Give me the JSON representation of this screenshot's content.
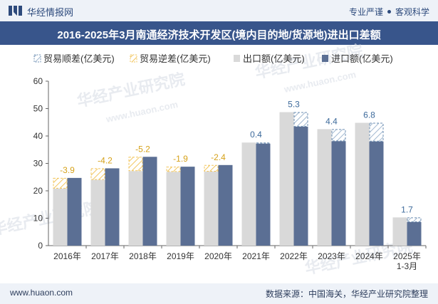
{
  "header": {
    "brand": "华经情报网",
    "slogan_left": "专业严谨",
    "slogan_right": "客观科学"
  },
  "watermark": [
    "华经产业研究院",
    "www.huaon.com"
  ],
  "footer": {
    "url": "www.huaon.com",
    "source": "数据来源：中国海关，华经产业研究院整理"
  },
  "colors": {
    "export": "#d9d9d9",
    "import": "#5b6f94",
    "surplus_border": "#6e8fb3",
    "deficit_border": "#f2c55c",
    "title_bg": "#38558b",
    "bar_bg": "#eef2f8"
  },
  "chart_data": {
    "type": "bar",
    "title": "2016-2025年3月南通经济技术开发区(境内目的地/货源地)进出口差额",
    "categories": [
      "2016年",
      "2017年",
      "2018年",
      "2019年",
      "2020年",
      "2021年",
      "2022年",
      "2023年",
      "2024年",
      "2025年\n1-3月"
    ],
    "series": [
      {
        "name": "出口额(亿美元)",
        "values": [
          20.8,
          24.0,
          27.2,
          26.9,
          27.0,
          37.6,
          48.7,
          42.5,
          44.8,
          10.3
        ]
      },
      {
        "name": "进口额(亿美元)",
        "values": [
          24.7,
          28.2,
          32.4,
          28.8,
          29.4,
          37.2,
          43.4,
          38.1,
          38.0,
          8.6
        ]
      }
    ],
    "balance": {
      "labels": [
        "-3.9",
        "-4.2",
        "-5.2",
        "-1.9",
        "-2.4",
        "0.4",
        "5.3",
        "4.4",
        "6.8",
        "1.7"
      ],
      "values": [
        -3.9,
        -4.2,
        -5.2,
        -1.9,
        -2.4,
        0.4,
        5.3,
        4.4,
        6.8,
        1.7
      ]
    },
    "legend": [
      {
        "name": "贸易顺差(亿美元)",
        "kind": "surplus"
      },
      {
        "name": "贸易逆差(亿美元)",
        "kind": "deficit"
      },
      {
        "name": "出口额(亿美元)",
        "kind": "export"
      },
      {
        "name": "进口额(亿美元)",
        "kind": "import"
      }
    ],
    "yticks": [
      "0",
      "10",
      "20",
      "30",
      "40",
      "50",
      "60"
    ],
    "ylim": [
      0,
      60
    ],
    "grid": false,
    "legend_position": "top-left"
  }
}
